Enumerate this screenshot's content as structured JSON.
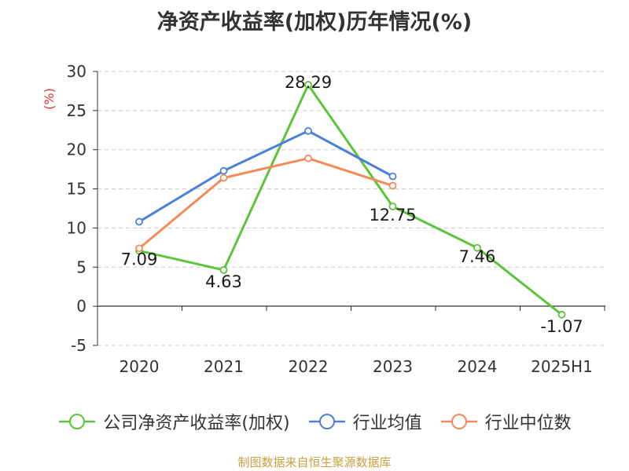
{
  "title": "净资产收益率(加权)历年情况(%)",
  "source": "制图数据来自恒生聚源数据库",
  "chart_data": {
    "type": "line",
    "categories": [
      "2020",
      "2021",
      "2022",
      "2023",
      "2024",
      "2025H1"
    ],
    "ylabel": "(%)",
    "ylim": [
      -5,
      30
    ],
    "yticks": [
      30,
      25,
      20,
      15,
      10,
      5,
      0,
      -5
    ],
    "grid": true,
    "legend_position": "bottom",
    "series": [
      {
        "name": "公司净资产收益率(加权)",
        "color": "#5cc43a",
        "values": [
          7.09,
          4.63,
          28.29,
          12.75,
          7.46,
          -1.07
        ],
        "labels": [
          "7.09",
          "4.63",
          "28.29",
          "12.75",
          "7.46",
          "-1.07"
        ]
      },
      {
        "name": "行业均值",
        "color": "#4a7fdc",
        "values": [
          10.8,
          17.3,
          22.4,
          16.6,
          null,
          null
        ]
      },
      {
        "name": "行业中位数",
        "color": "#f4895a",
        "values": [
          7.4,
          16.4,
          18.9,
          15.4,
          null,
          null
        ]
      }
    ]
  }
}
